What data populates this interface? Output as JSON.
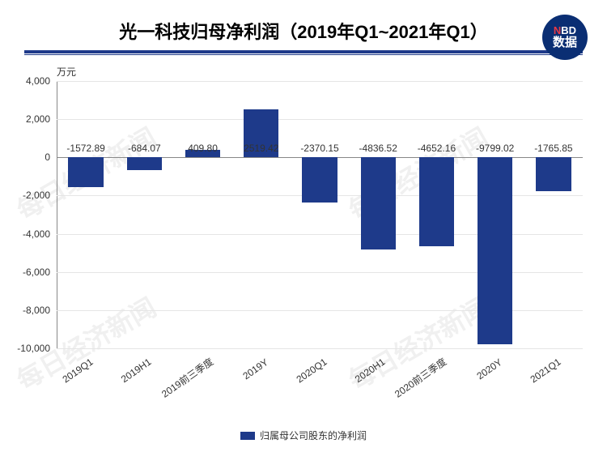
{
  "header": {
    "title": "光一科技归母净利润（2019年Q1~2021年Q1）"
  },
  "logo": {
    "top_n": "N",
    "top_bd": "BD",
    "bottom": "数据",
    "bg": "#0a2e73",
    "accent": "#e63946"
  },
  "watermark": {
    "text": "每日经济新闻",
    "color": "#f0f0f0"
  },
  "chart": {
    "type": "bar",
    "y_unit": "万元",
    "ylim": [
      -10000,
      4000
    ],
    "ytick_step": 2000,
    "yticks": [
      "4,000",
      "2,000",
      "0",
      "-2,000",
      "-4,000",
      "-6,000",
      "-8,000",
      "-10,000"
    ],
    "ytick_values": [
      4000,
      2000,
      0,
      -2000,
      -4000,
      -6000,
      -8000,
      -10000
    ],
    "categories": [
      "2019Q1",
      "2019H1",
      "2019前三季度",
      "2019Y",
      "2020Q1",
      "2020H1",
      "2020前三季度",
      "2020Y",
      "2021Q1"
    ],
    "values": [
      -1572.89,
      -684.07,
      409.8,
      2519.42,
      -2370.15,
      -4836.52,
      -4652.16,
      -9799.02,
      -1765.85
    ],
    "value_labels": [
      "-1572.89",
      "-684.07",
      "409.80",
      "2519.42",
      "-2370.15",
      "-4836.52",
      "-4652.16",
      "-9799.02",
      "-1765.85"
    ],
    "bar_color": "#1e3a8a",
    "grid_color": "#e5e5e5",
    "axis_color": "#888888",
    "background_color": "#ffffff",
    "bar_width": 0.6,
    "label_fontsize": 12,
    "title_fontsize": 22,
    "legend": {
      "label": "归属母公司股东的净利润",
      "color": "#1e3a8a"
    }
  }
}
